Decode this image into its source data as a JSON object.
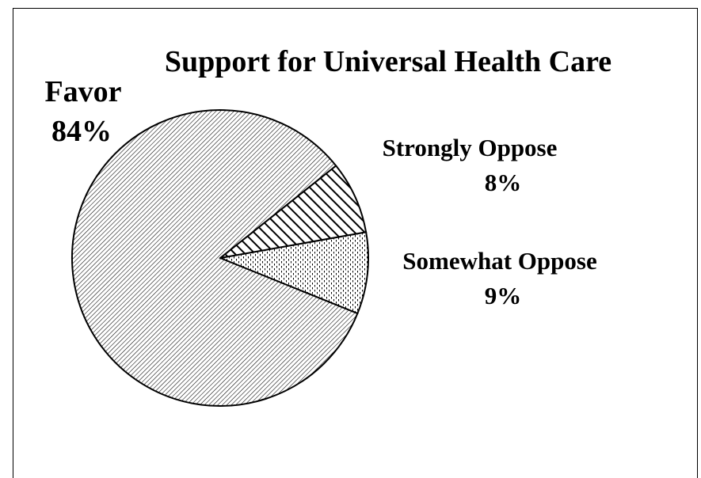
{
  "chart_data": {
    "type": "pie",
    "title": "Support for Universal Health Care",
    "start_label": "Somewhat Oppose",
    "slices": [
      {
        "label": "Favor",
        "value": 84,
        "value_text": "84%",
        "pattern": "diagonal-fine"
      },
      {
        "label": "Strongly Oppose",
        "value": 8,
        "value_text": "8%",
        "pattern": "diagonal-wide"
      },
      {
        "label": "Somewhat Oppose",
        "value": 9,
        "value_text": "9%",
        "pattern": "dotted-vertical"
      }
    ]
  }
}
